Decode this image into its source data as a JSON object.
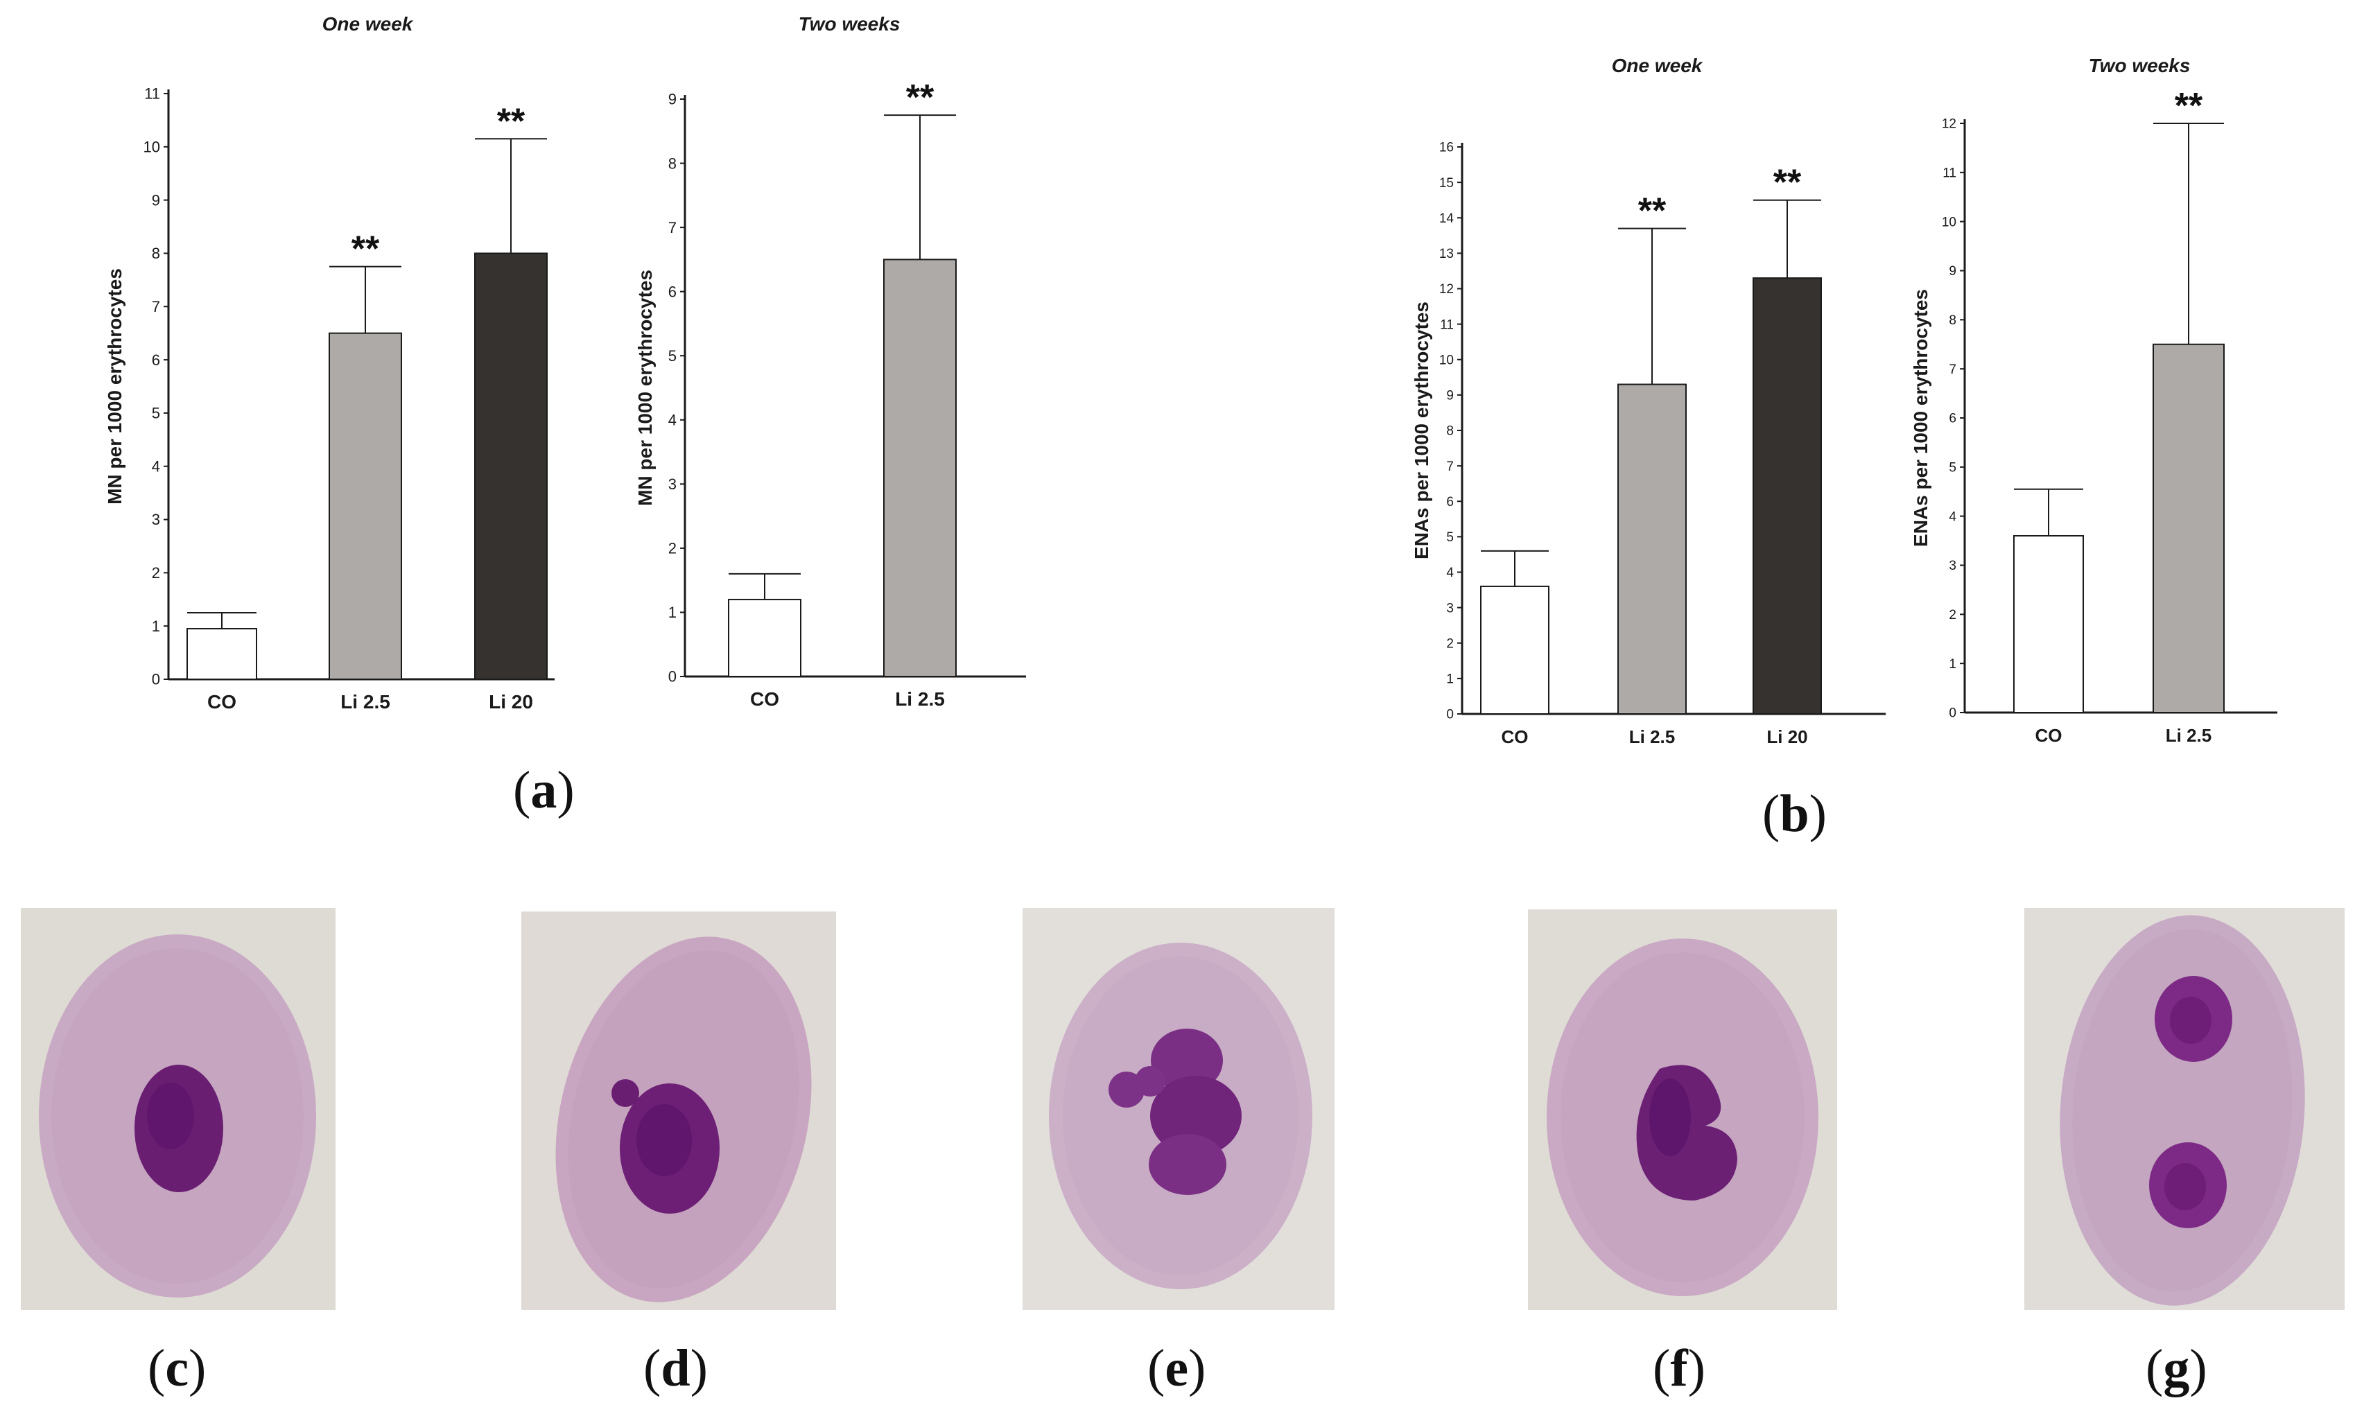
{
  "colors": {
    "control_bar": "#ffffff",
    "li25_bar": "#aeaaa7",
    "li20_bar": "#363230",
    "axis": "#1a1a1a",
    "cell_background": "#dedad4",
    "cytoplasm": "#c7a8c2",
    "nucleus": "#6a1e72"
  },
  "chart_data": [
    {
      "id": "a1",
      "panel": "a",
      "type": "bar",
      "title": "One week",
      "ylabel": "MN per 1000 erythrocytes",
      "xlabel": "",
      "categories": [
        "CO",
        "Li 2.5",
        "Li 20"
      ],
      "values": [
        0.95,
        6.5,
        8.0
      ],
      "errors": [
        0.3,
        1.25,
        2.15
      ],
      "significance": [
        "",
        "**",
        "**"
      ],
      "ylim": [
        0,
        11
      ],
      "yticks": [
        "0",
        "1",
        "2",
        "3",
        "4",
        "5",
        "6",
        "7",
        "8",
        "9",
        "10",
        "11"
      ],
      "grid": false
    },
    {
      "id": "a2",
      "panel": "a",
      "type": "bar",
      "title": "Two weeks",
      "ylabel": "MN per 1000 erythrocytes",
      "xlabel": "",
      "categories": [
        "CO",
        "Li 2.5"
      ],
      "values": [
        1.2,
        6.5
      ],
      "errors": [
        0.4,
        2.25
      ],
      "significance": [
        "",
        "**"
      ],
      "ylim": [
        0,
        9
      ],
      "yticks": [
        "0",
        "1",
        "2",
        "3",
        "4",
        "5",
        "6",
        "7",
        "8",
        "9"
      ],
      "grid": false
    },
    {
      "id": "b1",
      "panel": "b",
      "type": "bar",
      "title": "One week",
      "ylabel": "ENAs per 1000 erythrocytes",
      "xlabel": "",
      "categories": [
        "CO",
        "Li 2.5",
        "Li 20"
      ],
      "values": [
        3.6,
        9.3,
        12.3
      ],
      "errors": [
        1.0,
        4.4,
        2.2
      ],
      "significance": [
        "",
        "**",
        "**"
      ],
      "ylim": [
        0,
        16
      ],
      "yticks": [
        "0",
        "1",
        "2",
        "3",
        "4",
        "5",
        "6",
        "7",
        "8",
        "9",
        "10",
        "11",
        "12",
        "13",
        "14",
        "15",
        "16"
      ],
      "grid": false
    },
    {
      "id": "b2",
      "panel": "b",
      "type": "bar",
      "title": "Two weeks",
      "ylabel": "ENAs per 1000 erythrocytes",
      "xlabel": "",
      "categories": [
        "CO",
        "Li 2.5"
      ],
      "values": [
        3.6,
        7.5
      ],
      "errors": [
        0.95,
        4.5
      ],
      "significance": [
        "",
        "**"
      ],
      "ylim": [
        0,
        12
      ],
      "yticks": [
        "0",
        "1",
        "2",
        "3",
        "4",
        "5",
        "6",
        "7",
        "8",
        "9",
        "10",
        "11",
        "12"
      ],
      "grid": false
    }
  ],
  "panel_labels": {
    "a": {
      "open": "(",
      "letter": "a",
      "close": ")"
    },
    "b": {
      "open": "(",
      "letter": "b",
      "close": ")"
    },
    "c": {
      "open": "(",
      "letter": "c",
      "close": ")"
    },
    "d": {
      "open": "(",
      "letter": "d",
      "close": ")"
    },
    "e": {
      "open": "(",
      "letter": "e",
      "close": ")"
    },
    "f": {
      "open": "(",
      "letter": "f",
      "close": ")"
    },
    "g": {
      "open": "(",
      "letter": "g",
      "close": ")"
    }
  },
  "micrographs": [
    {
      "panel": "c",
      "description_icon": "normal-erythrocyte-icon"
    },
    {
      "panel": "d",
      "description_icon": "micronucleated-erythrocyte-icon"
    },
    {
      "panel": "e",
      "description_icon": "lobed-nucleus-erythrocyte-icon"
    },
    {
      "panel": "f",
      "description_icon": "notched-nucleus-erythrocyte-icon"
    },
    {
      "panel": "g",
      "description_icon": "binucleated-erythrocyte-icon"
    }
  ]
}
